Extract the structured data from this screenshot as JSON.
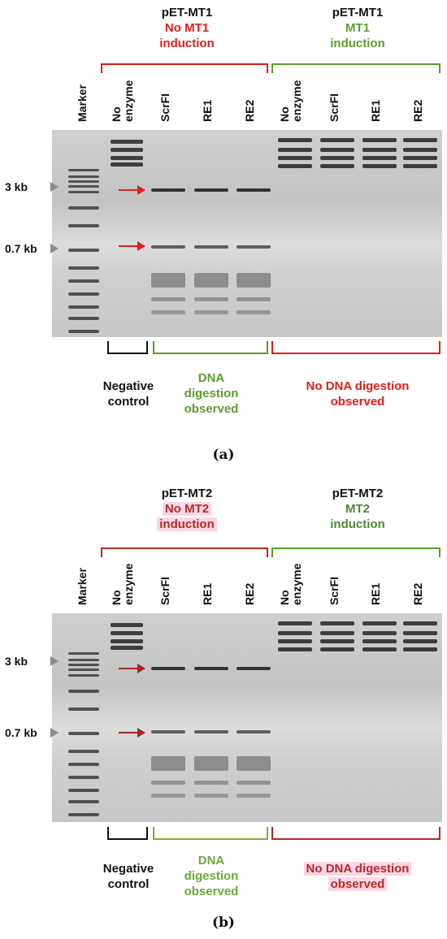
{
  "panel_a": {
    "plasmid_left": "pET-MT1",
    "condition_left": [
      "No MT1",
      "induction"
    ],
    "plasmid_right": "pET-MT1",
    "condition_right": [
      "MT1",
      "induction"
    ],
    "marker_label": "Marker",
    "lanes_left": [
      "No\nenzyme",
      "ScrFI",
      "RE1",
      "RE2"
    ],
    "lanes_right": [
      "No\nenzyme",
      "ScrFI",
      "RE1",
      "RE2"
    ],
    "size_3kb": "3 kb",
    "size_07kb": "0.7 kb",
    "footer_negative": [
      "Negative",
      "control"
    ],
    "footer_digested": [
      "DNA",
      "digestion",
      "observed"
    ],
    "footer_not_digested": [
      "No DNA digestion",
      "observed"
    ],
    "caption": "(a)"
  },
  "panel_b": {
    "plasmid_left": "pET-MT2",
    "condition_left": [
      "No MT2",
      "induction"
    ],
    "plasmid_right": "pET-MT2",
    "condition_right": [
      "MT2",
      "induction"
    ],
    "marker_label": "Marker",
    "lanes_left": [
      "No\nenzyme",
      "ScrFI",
      "RE1",
      "RE2"
    ],
    "lanes_right": [
      "No\nenzyme",
      "ScrFI",
      "RE1",
      "RE2"
    ],
    "size_3kb": "3 kb",
    "size_07kb": "0.7 kb",
    "footer_negative": [
      "Negative",
      "control"
    ],
    "footer_digested": [
      "DNA",
      "digestion",
      "observed"
    ],
    "footer_not_digested": [
      "No DNA digestion",
      "observed"
    ],
    "caption": "(b)"
  },
  "colors": {
    "no_induction_red": "#e0201b",
    "induction_green": "#5a9e2d",
    "panel_b_red": "#b52b26",
    "highlight_pink": "#fbd6e6",
    "arrow_red": "#e0201b",
    "negative_black": "#111111"
  }
}
